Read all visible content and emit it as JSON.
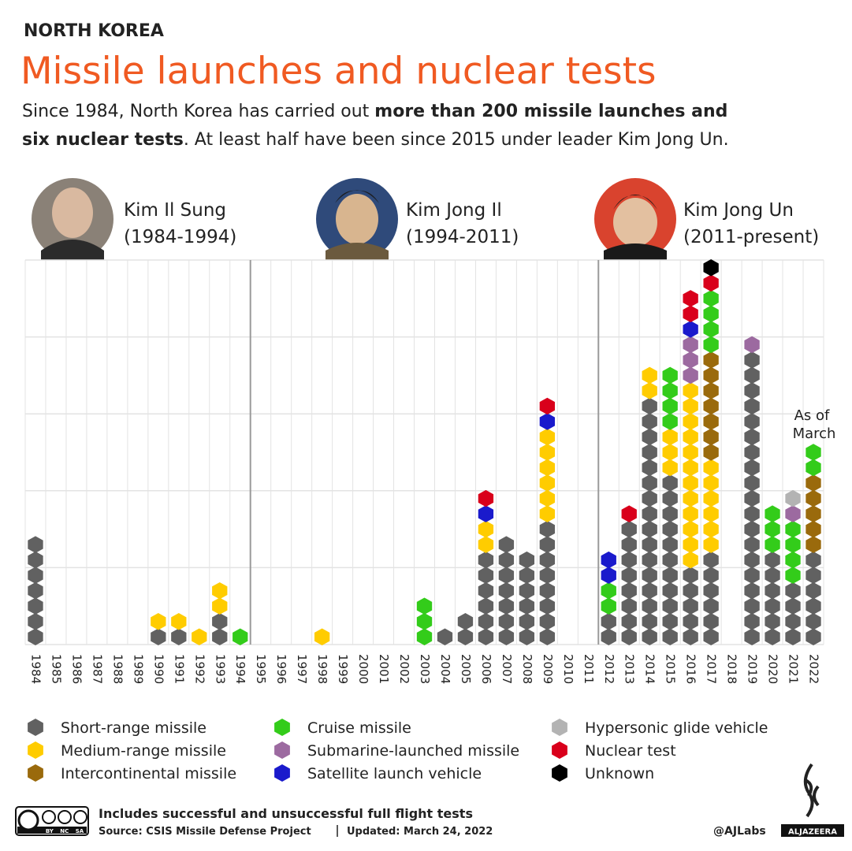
{
  "header": {
    "kicker": "NORTH KOREA",
    "title": "Missile launches and nuclear tests",
    "subtitle": [
      "Since 1984, North Korea has carried out ",
      "more than 200 missile launches and",
      "six nuclear tests",
      ". At least half have been since 2015 under leader Kim Jong Un."
    ]
  },
  "leaders": [
    {
      "name": "Kim Il Sung",
      "term": "(1984-1994)"
    },
    {
      "name": "Kim Jong Il",
      "term": "(1994-2011)"
    },
    {
      "name": "Kim Jong Un",
      "term": "(2011-present)"
    }
  ],
  "chart_data": {
    "type": "hexstack",
    "categories": [
      "1984",
      "1985",
      "1986",
      "1987",
      "1988",
      "1989",
      "1990",
      "1991",
      "1992",
      "1993",
      "1994",
      "1995",
      "1996",
      "1997",
      "1998",
      "1999",
      "2000",
      "2001",
      "2002",
      "2003",
      "2004",
      "2005",
      "2006",
      "2007",
      "2008",
      "2009",
      "2010",
      "2011",
      "2012",
      "2013",
      "2014",
      "2015",
      "2016",
      "2017",
      "2018",
      "2019",
      "2020",
      "2021",
      "2022"
    ],
    "ylim": [
      0,
      25
    ],
    "yticks": [
      0,
      5,
      10,
      15,
      20,
      25
    ],
    "grid": true,
    "annotation": "As of March",
    "series": [
      {
        "name": "Short-range missile",
        "color": "#616161",
        "values": [
          7,
          0,
          0,
          0,
          0,
          0,
          1,
          1,
          0,
          2,
          0,
          0,
          0,
          0,
          0,
          0,
          0,
          0,
          0,
          0,
          1,
          2,
          6,
          7,
          6,
          8,
          0,
          0,
          2,
          8,
          16,
          11,
          5,
          6,
          0,
          19,
          6,
          4,
          6
        ]
      },
      {
        "name": "Medium-range missile",
        "color": "#ffcc00",
        "values": [
          0,
          0,
          0,
          0,
          0,
          0,
          1,
          1,
          1,
          2,
          0,
          0,
          0,
          0,
          1,
          0,
          0,
          0,
          0,
          0,
          0,
          0,
          2,
          0,
          0,
          6,
          0,
          0,
          0,
          0,
          2,
          3,
          12,
          6,
          0,
          0,
          0,
          0,
          0
        ]
      },
      {
        "name": "Intercontinental missile",
        "color": "#9a6a0c",
        "values": [
          0,
          0,
          0,
          0,
          0,
          0,
          0,
          0,
          0,
          0,
          0,
          0,
          0,
          0,
          0,
          0,
          0,
          0,
          0,
          0,
          0,
          0,
          0,
          0,
          0,
          0,
          0,
          0,
          0,
          0,
          0,
          0,
          0,
          7,
          0,
          0,
          0,
          0,
          5
        ]
      },
      {
        "name": "Cruise missile",
        "color": "#33cc1a",
        "values": [
          0,
          0,
          0,
          0,
          0,
          0,
          0,
          0,
          0,
          0,
          1,
          0,
          0,
          0,
          0,
          0,
          0,
          0,
          0,
          3,
          0,
          0,
          0,
          0,
          0,
          0,
          0,
          0,
          2,
          0,
          0,
          4,
          0,
          4,
          0,
          0,
          3,
          4,
          2
        ]
      },
      {
        "name": "Submarine-launched missile",
        "color": "#9c6aa0",
        "values": [
          0,
          0,
          0,
          0,
          0,
          0,
          0,
          0,
          0,
          0,
          0,
          0,
          0,
          0,
          0,
          0,
          0,
          0,
          0,
          0,
          0,
          0,
          0,
          0,
          0,
          0,
          0,
          0,
          0,
          0,
          0,
          0,
          3,
          0,
          0,
          1,
          0,
          1,
          0
        ]
      },
      {
        "name": "Satellite launch vehicle",
        "color": "#1a1acc",
        "values": [
          0,
          0,
          0,
          0,
          0,
          0,
          0,
          0,
          0,
          0,
          0,
          0,
          0,
          0,
          0,
          0,
          0,
          0,
          0,
          0,
          0,
          0,
          1,
          0,
          0,
          1,
          0,
          0,
          2,
          0,
          0,
          0,
          1,
          0,
          0,
          0,
          0,
          0,
          0
        ]
      },
      {
        "name": "Hypersonic glide vehicle",
        "color": "#b3b3b3",
        "values": [
          0,
          0,
          0,
          0,
          0,
          0,
          0,
          0,
          0,
          0,
          0,
          0,
          0,
          0,
          0,
          0,
          0,
          0,
          0,
          0,
          0,
          0,
          0,
          0,
          0,
          0,
          0,
          0,
          0,
          0,
          0,
          0,
          0,
          0,
          0,
          0,
          0,
          1,
          0
        ]
      },
      {
        "name": "Nuclear test",
        "color": "#d9001b",
        "values": [
          0,
          0,
          0,
          0,
          0,
          0,
          0,
          0,
          0,
          0,
          0,
          0,
          0,
          0,
          0,
          0,
          0,
          0,
          0,
          0,
          0,
          0,
          1,
          0,
          0,
          1,
          0,
          0,
          0,
          1,
          0,
          0,
          2,
          1,
          0,
          0,
          0,
          0,
          0
        ]
      },
      {
        "name": "Unknown",
        "color": "#000000",
        "values": [
          0,
          0,
          0,
          0,
          0,
          0,
          0,
          0,
          0,
          0,
          0,
          0,
          0,
          0,
          0,
          0,
          0,
          0,
          0,
          0,
          0,
          0,
          0,
          0,
          0,
          0,
          0,
          0,
          0,
          0,
          0,
          0,
          0,
          1,
          0,
          0,
          0,
          0,
          0
        ]
      }
    ]
  },
  "footer": {
    "note": "Includes successful and unsuccessful full flight tests",
    "source": "Source: CSIS Missile Defense Project",
    "updated": "Updated: March 24, 2022",
    "credit": "@AJLabs",
    "brand": "ALJAZEERA",
    "license": "BY NC SA"
  }
}
